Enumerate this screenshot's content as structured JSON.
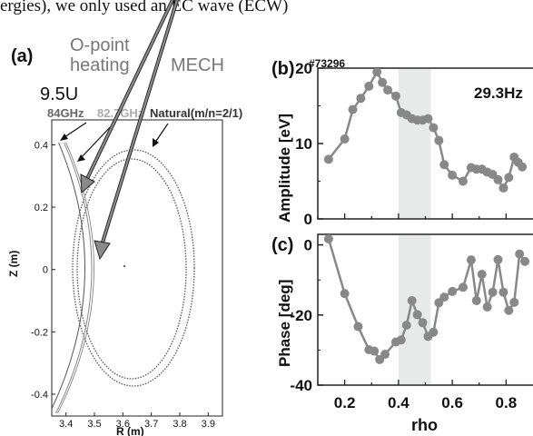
{
  "header_text": "ergies), we only used an EC wave (ECW)",
  "panel_a": {
    "label": "(a)",
    "annotation_o_point": "O-point",
    "annotation_heating": "heating",
    "annotation_mech": "MECH",
    "annotation_95u": "9.5U",
    "annotation_84ghz": "84GHz",
    "annotation_827ghz": "82.7GHz",
    "annotation_natural": "Natural(m/n=2/1)",
    "xlabel": "R (m)",
    "ylabel": "Z (m)",
    "xticks": [
      "3.4",
      "3.5",
      "3.6",
      "3.7",
      "3.8",
      "3.9"
    ],
    "yticks": [
      "0.4",
      "0.2",
      "0",
      "-0.2",
      "-0.4"
    ]
  },
  "panel_b": {
    "label": "(b)",
    "shot": "#73296",
    "freq": "29.3Hz",
    "ylabel": "Amplitude [eV]",
    "yticks": [
      "20",
      "10",
      "0"
    ]
  },
  "panel_c": {
    "label": "(c)",
    "ylabel": "Phase [deg]",
    "yticks": [
      "0",
      "-20",
      "-40"
    ],
    "xticks": [
      "0.2",
      "0.4",
      "0.6",
      "0.8"
    ],
    "xlabel": "rho"
  },
  "colors": {
    "marker": "#888888",
    "shade": "#e6ebea",
    "arrow": "#888888",
    "grey_text": "#aaaaaa"
  },
  "chart_data": [
    {
      "type": "scatter",
      "title": "",
      "xlabel": "R (m)",
      "ylabel": "Z (m)",
      "xlim": [
        3.35,
        3.95
      ],
      "ylim": [
        -0.47,
        0.48
      ],
      "series": [
        {
          "name": "Natural(m/n=2/1)",
          "shape": "ellipse",
          "center": [
            3.645,
            -0.005
          ],
          "semi_axes_r": [
            0.195,
            0.205
          ],
          "semi_axes_z": [
            0.375,
            0.395
          ]
        },
        {
          "name": "84GHz",
          "shape": "arc",
          "points": [
            [
              3.36,
              0.47
            ],
            [
              3.42,
              0.37
            ],
            [
              3.46,
              0.25
            ],
            [
              3.485,
              0.1
            ],
            [
              3.495,
              0.0
            ],
            [
              3.485,
              -0.1
            ],
            [
              3.46,
              -0.25
            ],
            [
              3.42,
              -0.37
            ],
            [
              3.36,
              -0.46
            ]
          ]
        },
        {
          "name": "82.7GHz",
          "shape": "arc",
          "points": [
            [
              3.36,
              0.49
            ],
            [
              3.43,
              0.39
            ],
            [
              3.48,
              0.27
            ],
            [
              3.505,
              0.12
            ],
            [
              3.515,
              0.0
            ],
            [
              3.505,
              -0.12
            ],
            [
              3.48,
              -0.27
            ],
            [
              3.43,
              -0.39
            ],
            [
              3.36,
              -0.48
            ]
          ]
        }
      ]
    },
    {
      "type": "line",
      "title": "",
      "xlabel": "",
      "ylabel": "Amplitude [eV]",
      "xlim": [
        0.1,
        0.9
      ],
      "ylim": [
        0,
        20
      ],
      "shaded_x": [
        0.4,
        0.52
      ],
      "x": [
        0.14,
        0.2,
        0.23,
        0.26,
        0.29,
        0.32,
        0.34,
        0.36,
        0.39,
        0.41,
        0.43,
        0.45,
        0.47,
        0.49,
        0.51,
        0.53,
        0.55,
        0.57,
        0.6,
        0.64,
        0.67,
        0.69,
        0.71,
        0.73,
        0.75,
        0.77,
        0.79,
        0.81,
        0.83,
        0.845,
        0.86
      ],
      "values": [
        7.9,
        10.6,
        14.5,
        16.0,
        17.6,
        19.5,
        18.1,
        17.1,
        16.3,
        14.1,
        13.8,
        13.3,
        13.1,
        13.1,
        13.3,
        12.1,
        10.4,
        7.2,
        5.8,
        5.0,
        6.8,
        6.6,
        6.6,
        6.2,
        5.9,
        5.2,
        4.1,
        5.5,
        8.2,
        7.5,
        6.9
      ]
    },
    {
      "type": "line",
      "title": "",
      "xlabel": "rho",
      "ylabel": "Phase [deg]",
      "xlim": [
        0.1,
        0.9
      ],
      "ylim": [
        -40,
        3
      ],
      "shaded_x": [
        0.4,
        0.52
      ],
      "x": [
        0.14,
        0.2,
        0.25,
        0.29,
        0.31,
        0.33,
        0.35,
        0.39,
        0.41,
        0.43,
        0.45,
        0.47,
        0.49,
        0.51,
        0.53,
        0.55,
        0.57,
        0.6,
        0.64,
        0.67,
        0.69,
        0.71,
        0.73,
        0.75,
        0.77,
        0.79,
        0.81,
        0.83,
        0.85,
        0.87
      ],
      "values": [
        1.7,
        -13.9,
        -23.3,
        -29.9,
        -30.3,
        -32.7,
        -31.2,
        -27.7,
        -27.1,
        -22.9,
        -15.9,
        -19.9,
        -22.2,
        -26.1,
        -24.9,
        -16.5,
        -14.9,
        -13.3,
        -12.1,
        -4.3,
        -15.9,
        -8.4,
        -17.7,
        -13.5,
        -4.2,
        -13.5,
        -18.7,
        -16.4,
        -2.6,
        -4.7
      ]
    }
  ]
}
